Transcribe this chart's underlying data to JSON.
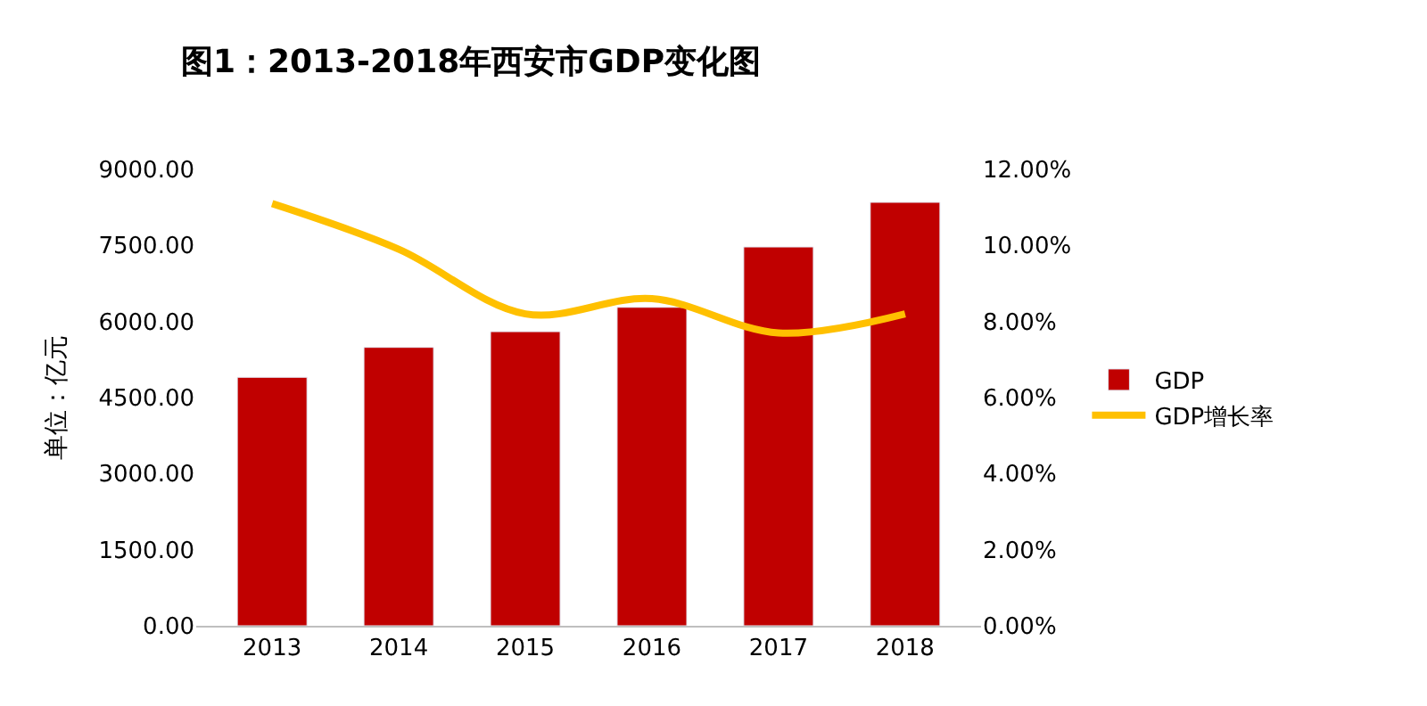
{
  "chart_data": {
    "type": "bar",
    "title": "图1：2013-2018年西安市GDP变化图",
    "ylabel": "单位：亿元",
    "categories": [
      "2013",
      "2014",
      "2015",
      "2016",
      "2017",
      "2018"
    ],
    "series": [
      {
        "name": "GDP",
        "color": "#c00000",
        "values": [
          4900,
          5490,
          5800,
          6280,
          7470,
          8350
        ]
      },
      {
        "name": "GDP增长率",
        "color": "#ffc000",
        "type": "line",
        "axis": "y2",
        "values": [
          11.1,
          9.9,
          8.2,
          8.6,
          7.7,
          8.2
        ]
      }
    ],
    "ylim": [
      0,
      9000
    ],
    "yticks": [
      {
        "value": 0,
        "label": "0.00"
      },
      {
        "value": 1500,
        "label": "1500.00"
      },
      {
        "value": 3000,
        "label": "3000.00"
      },
      {
        "value": 4500,
        "label": "4500.00"
      },
      {
        "value": 6000,
        "label": "6000.00"
      },
      {
        "value": 7500,
        "label": "7500.00"
      },
      {
        "value": 9000,
        "label": "9000.00"
      }
    ],
    "y2lim": [
      0,
      12
    ],
    "y2ticks": [
      {
        "value": 0,
        "label": "0.00%"
      },
      {
        "value": 2,
        "label": "2.00%"
      },
      {
        "value": 4,
        "label": "4.00%"
      },
      {
        "value": 6,
        "label": "6.00%"
      },
      {
        "value": 8,
        "label": "8.00%"
      },
      {
        "value": 10,
        "label": "10.00%"
      },
      {
        "value": 12,
        "label": "12.00%"
      }
    ],
    "legend": "right"
  }
}
